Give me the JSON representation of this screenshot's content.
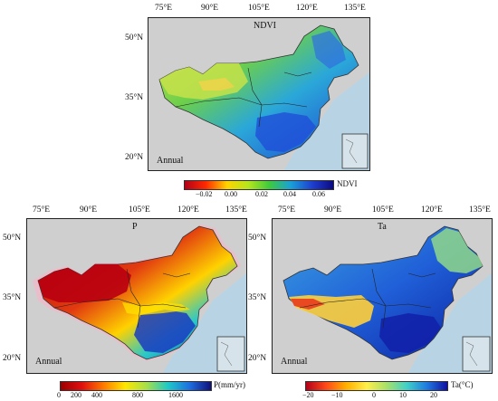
{
  "panels": {
    "ndvi": {
      "title": "NDVI",
      "season": "Annual",
      "lon_ticks": [
        "75°E",
        "90°E",
        "105°E",
        "120°E",
        "135°E"
      ],
      "lat_ticks": [
        "50°N",
        "35°N",
        "20°N"
      ],
      "colorbar": {
        "labels": [
          "−0.02",
          "0.00",
          "0.02",
          "0.04",
          "0.06"
        ],
        "unit": "NDVI",
        "colors": [
          "#b2001a",
          "#ff2a00",
          "#ffd400",
          "#b5e61d",
          "#3ec93e",
          "#1aa0d8",
          "#1f3fd0",
          "#0b0b80"
        ]
      }
    },
    "p": {
      "title": "P",
      "season": "Annual",
      "lon_ticks": [
        "75°E",
        "90°E",
        "105°E",
        "120°E",
        "135°E"
      ],
      "lat_ticks": [
        "50°N",
        "35°N",
        "20°N"
      ],
      "colorbar": {
        "labels": [
          "0",
          "200",
          "400",
          "800",
          "1600"
        ],
        "unit": "P(mm/yr)",
        "colors": [
          "#9b0000",
          "#e01010",
          "#ff7a00",
          "#ffe600",
          "#a6e04a",
          "#1fc8c8",
          "#1f6fe0",
          "#10107a"
        ]
      }
    },
    "ta": {
      "title": "Ta",
      "season": "Annual",
      "lon_ticks": [
        "75°E",
        "90°E",
        "105°E",
        "120°E",
        "135°E"
      ],
      "lat_ticks": [
        "50°N",
        "35°N",
        "20°N"
      ],
      "colorbar": {
        "labels": [
          "−20",
          "−10",
          "0",
          "10",
          "20"
        ],
        "unit": "Ta(°C)",
        "colors": [
          "#b2001a",
          "#ff4a1a",
          "#ffb000",
          "#ffef4a",
          "#a8e06a",
          "#40d0c8",
          "#1f78e0",
          "#1010a0"
        ]
      }
    }
  },
  "colors": {
    "land_background": "#cfcfcf",
    "sea": "#b8d4e4"
  }
}
